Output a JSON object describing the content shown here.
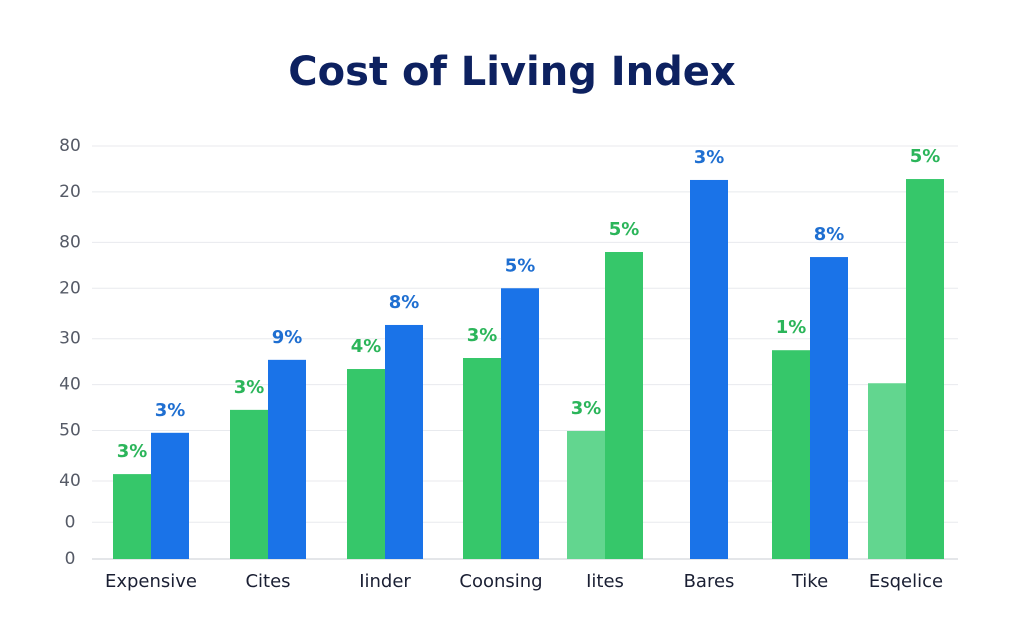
{
  "chart_data": {
    "type": "bar",
    "title": "Cost of Living Index",
    "categories": [
      "Expensive",
      "Cites",
      "Iinder",
      "Coonsing",
      "Iites",
      "Bares",
      "Tike",
      "Esqelice"
    ],
    "series": [
      {
        "colors": [
          "#36c76a",
          "#36c76a",
          "#36c76a",
          "#36c76a",
          "#62d68f",
          null,
          "#36c76a",
          "#62d68f"
        ],
        "label_color": "#2bb55a",
        "values": [
          18.5,
          32.5,
          41.4,
          43.8,
          27.9,
          null,
          45.5,
          38.3
        ],
        "value_labels": [
          "3%",
          "3%",
          "4%",
          "3%",
          "3%",
          null,
          "1%",
          null
        ]
      },
      {
        "colors": [
          "#1a73e8",
          "#1a73e8",
          "#1a73e8",
          "#1a73e8",
          "#36c76a",
          "#1a73e8",
          "#1a73e8",
          "#36c76a"
        ],
        "label_colors": [
          "#1f6fd1",
          "#1f6fd1",
          "#1f6fd1",
          "#1f6fd1",
          "#2bb55a",
          "#1f6fd1",
          "#1f6fd1",
          "#2bb55a"
        ],
        "values": [
          27.5,
          43.4,
          51.0,
          59.0,
          66.9,
          82.6,
          65.8,
          82.8
        ],
        "value_labels": [
          "3%",
          "9%",
          "8%",
          "5%",
          "5%",
          "3%",
          "8%",
          "5%"
        ]
      }
    ],
    "ylim": [
      0,
      90
    ],
    "yticks": [
      0,
      {
        "value": 8,
        "label": "0"
      },
      {
        "value": 17,
        "label": "40"
      },
      {
        "value": 28,
        "label": "50"
      },
      {
        "value": 38,
        "label": "40"
      },
      {
        "value": 48,
        "label": "30"
      },
      {
        "value": 59,
        "label": "20"
      },
      {
        "value": 69,
        "label": "80"
      },
      {
        "value": 80,
        "label": "20"
      },
      {
        "value": 90,
        "label": "80"
      }
    ],
    "grid": true
  }
}
